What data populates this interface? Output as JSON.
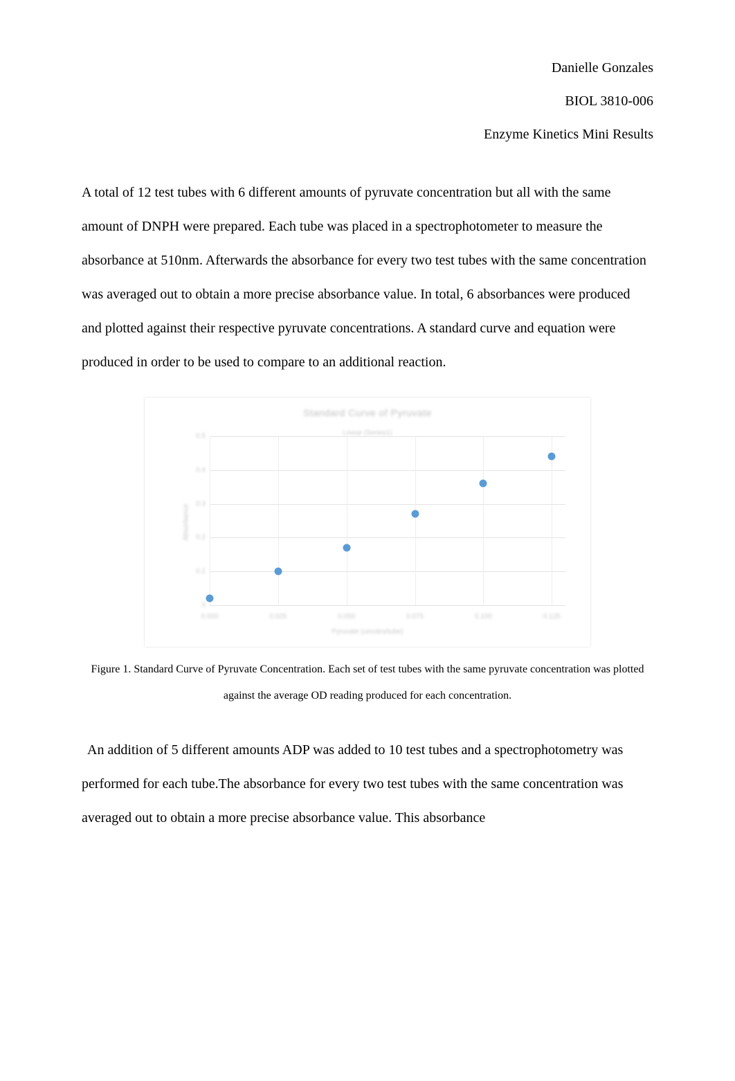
{
  "header": {
    "author": "Danielle Gonzales",
    "course": "BIOL 3810-006",
    "assignment": "Enzyme Kinetics Mini Results"
  },
  "paragraph1": "A total of 12 test tubes with 6 different amounts of pyruvate concentration but all with the same amount of DNPH were prepared. Each tube was placed in a spectrophotometer to measure the absorbance at 510nm. Afterwards the absorbance for every two test tubes with the same concentration was averaged out to obtain a more precise absorbance value. In total, 6 absorbances were produced and plotted against their respective pyruvate concentrations. A standard curve and equation were produced in order to be used to compare to an additional reaction.",
  "figure1": {
    "type": "scatter",
    "title": "Standard Curve of Pyruvate",
    "subtitle": "Linear (Series1)",
    "xlabel": "Pyruvate (umoles/tube)",
    "ylabel": "Absorbance",
    "x_values": [
      0.0,
      0.025,
      0.05,
      0.075,
      0.1,
      0.125
    ],
    "y_values": [
      0.02,
      0.1,
      0.17,
      0.27,
      0.36,
      0.44
    ],
    "xlim": [
      0,
      0.13
    ],
    "ylim": [
      0,
      0.5
    ],
    "x_ticks": [
      0.0,
      0.025,
      0.05,
      0.075,
      0.1,
      0.125
    ],
    "x_tick_labels": [
      "0.000",
      "0.025",
      "0.050",
      "0.075",
      "0.100",
      "0.125"
    ],
    "y_ticks": [
      0,
      0.1,
      0.2,
      0.3,
      0.4,
      0.5
    ],
    "y_tick_labels": [
      "0",
      "0.1",
      "0.2",
      "0.3",
      "0.4",
      "0.5"
    ],
    "marker_color": "#5b9bd5",
    "marker_size": 11,
    "grid_color": "#e3e3e3",
    "background_color": "#ffffff",
    "title_color": "#bfbfbf",
    "tick_color": "#c9c9c9",
    "title_fontsize": 14,
    "label_fontsize": 10
  },
  "caption1": "Figure 1.  Standard Curve of Pyruvate Concentration.   Each set of test tubes with the same pyruvate concentration was plotted against the average OD reading produced for each concentration.",
  "paragraph2": " An addition of 5 different amounts ADP was added to 10 test tubes and a spectrophotometry was performed for each tube.The absorbance for every two test tubes with the same concentration was averaged out to obtain a more precise absorbance value. This absorbance"
}
